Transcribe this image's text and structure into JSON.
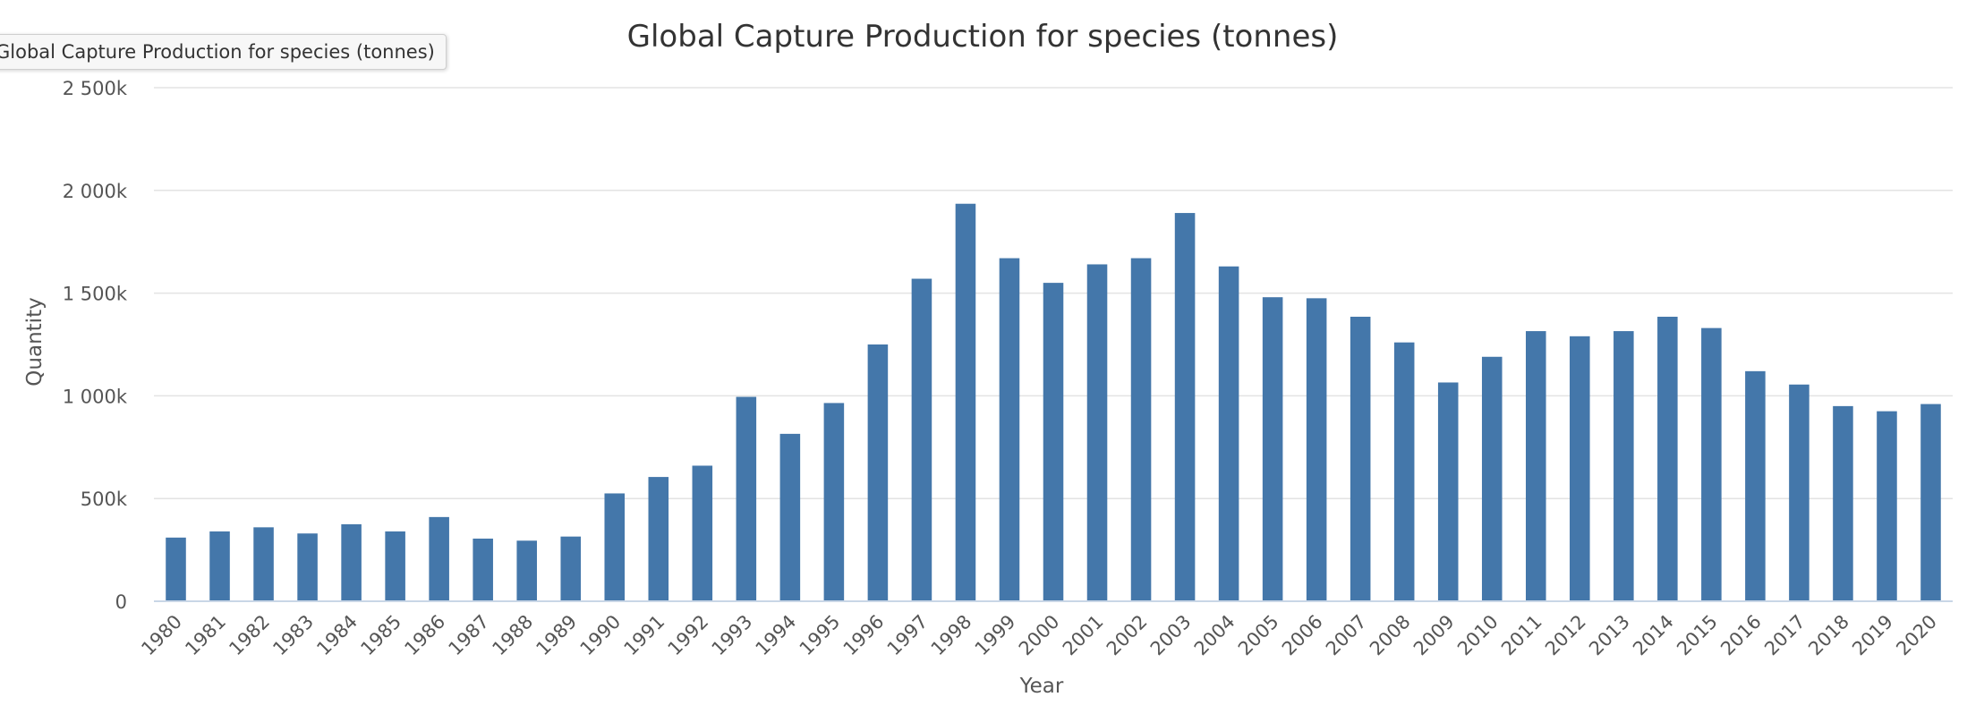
{
  "chart_data": {
    "type": "bar",
    "title": "Global Capture Production for species (tonnes)",
    "tooltip": "Global Capture Production for species (tonnes)",
    "xlabel": "Year",
    "ylabel": "Quantity",
    "ylim": [
      0,
      2500000
    ],
    "y_ticks": [
      0,
      500000,
      1000000,
      1500000,
      2000000,
      2500000
    ],
    "y_tick_labels": [
      "0",
      "500k",
      "1 000k",
      "1 500k",
      "2 000k",
      "2 500k"
    ],
    "grid": true,
    "legend": "none",
    "bar_color": "#4477aa",
    "categories": [
      "1980",
      "1981",
      "1982",
      "1983",
      "1984",
      "1985",
      "1986",
      "1987",
      "1988",
      "1989",
      "1990",
      "1991",
      "1992",
      "1993",
      "1994",
      "1995",
      "1996",
      "1997",
      "1998",
      "1999",
      "2000",
      "2001",
      "2002",
      "2003",
      "2004",
      "2005",
      "2006",
      "2007",
      "2008",
      "2009",
      "2010",
      "2011",
      "2012",
      "2013",
      "2014",
      "2015",
      "2016",
      "2017",
      "2018",
      "2019",
      "2020"
    ],
    "values": [
      310000,
      340000,
      360000,
      330000,
      375000,
      340000,
      410000,
      305000,
      295000,
      315000,
      525000,
      605000,
      660000,
      995000,
      815000,
      965000,
      1250000,
      1570000,
      1935000,
      1670000,
      1550000,
      1640000,
      1670000,
      1890000,
      1630000,
      1480000,
      1475000,
      1385000,
      1260000,
      1065000,
      1190000,
      1315000,
      1290000,
      1315000,
      1385000,
      1330000,
      1120000,
      1055000,
      950000,
      925000,
      960000
    ]
  }
}
